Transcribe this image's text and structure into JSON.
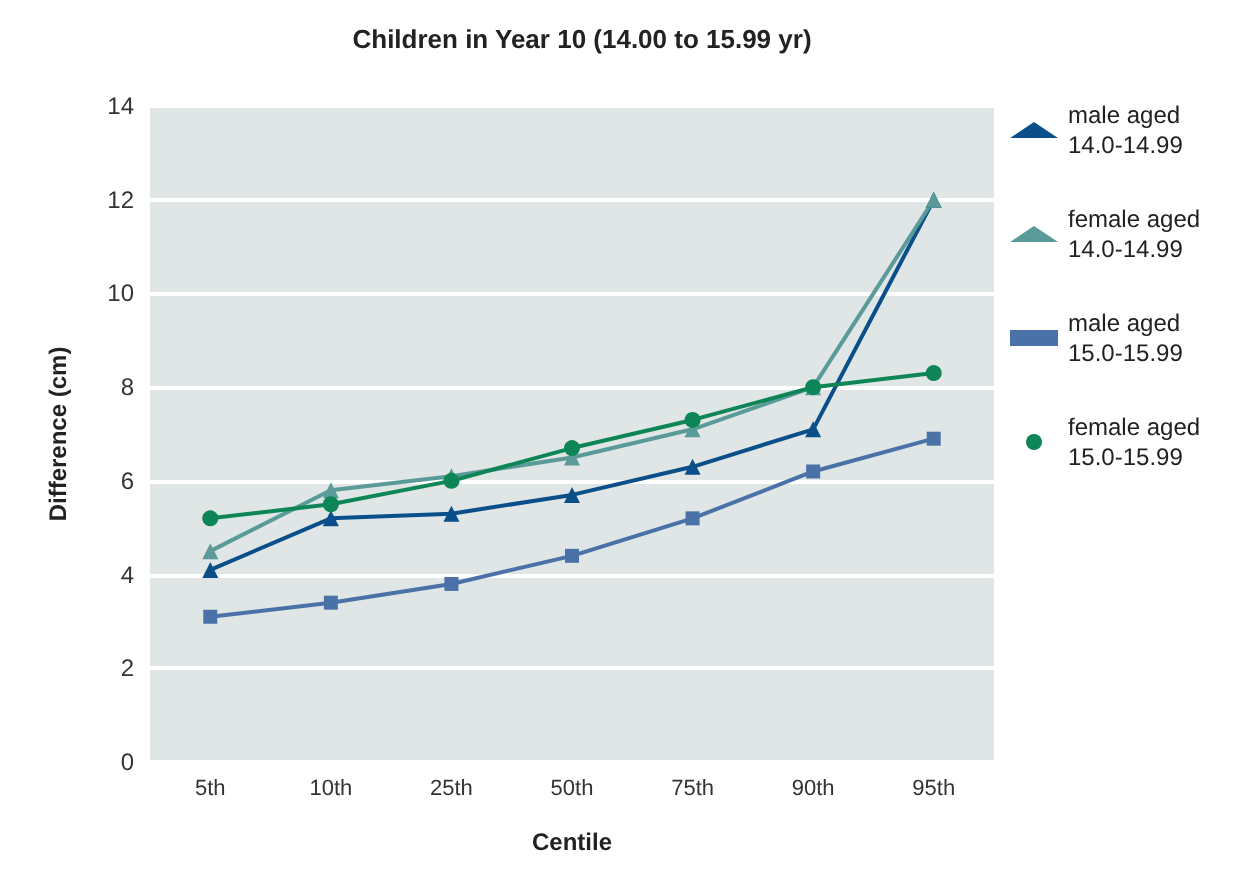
{
  "chart_data": {
    "type": "line",
    "title": "Children in Year 10 (14.00 to 15.99 yr)",
    "xlabel": "Centile",
    "ylabel": "Difference (cm)",
    "categories": [
      "5th",
      "10th",
      "25th",
      "50th",
      "75th",
      "90th",
      "95th"
    ],
    "series": [
      {
        "name": "male aged 14.0-14.99",
        "color": "#0b4f8a",
        "marker": "triangle",
        "values": [
          4.1,
          5.2,
          5.3,
          5.7,
          6.3,
          7.1,
          12
        ]
      },
      {
        "name": "female aged 14.0-14.99",
        "color": "#5a9a98",
        "marker": "triangle",
        "values": [
          4.5,
          5.8,
          6.1,
          6.5,
          7.1,
          8.0,
          12
        ]
      },
      {
        "name": "male aged 15.0-15.99",
        "color": "#4a71a8",
        "marker": "square",
        "values": [
          3.1,
          3.4,
          3.8,
          4.4,
          5.2,
          6.2,
          6.9
        ]
      },
      {
        "name": "female aged 15.0-15.99",
        "color": "#0e8556",
        "marker": "circle",
        "values": [
          5.2,
          5.5,
          6.0,
          6.7,
          7.3,
          8.0,
          8.3
        ]
      }
    ],
    "ylim": [
      0,
      14
    ],
    "yticks": [
      0,
      2,
      4,
      6,
      8,
      10,
      12,
      14
    ],
    "grid": "y",
    "legend": "right",
    "line_style": "solid"
  }
}
